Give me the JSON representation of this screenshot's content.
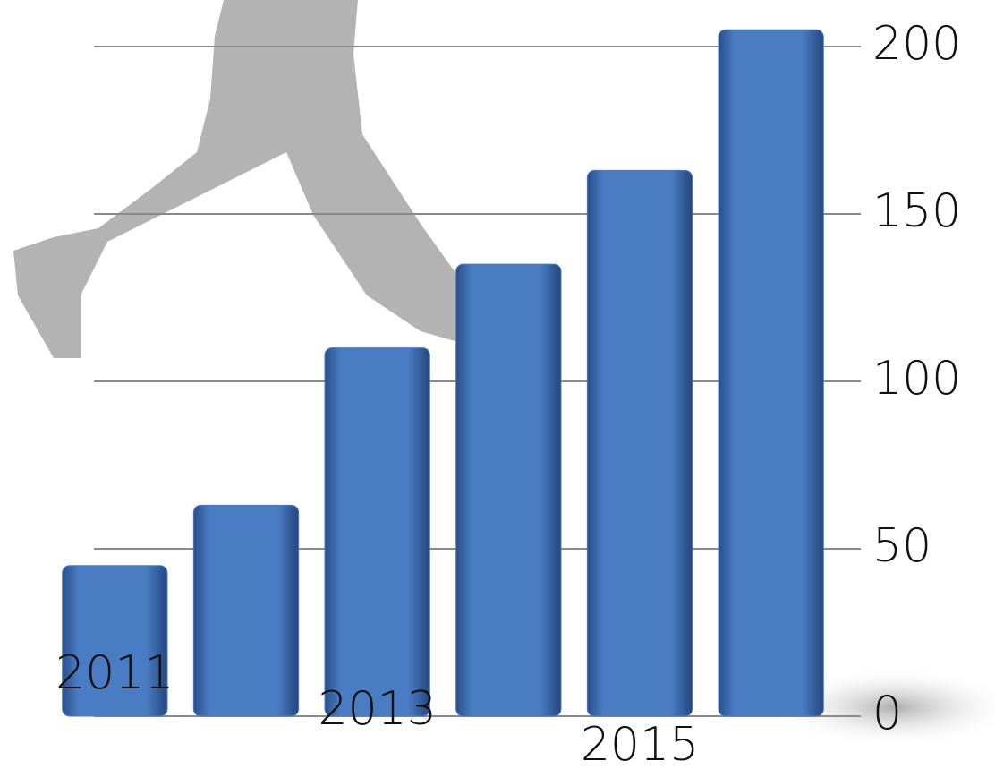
{
  "chart_data": {
    "type": "bar",
    "categories": [
      "2011",
      null,
      "2013",
      null,
      "2015",
      null
    ],
    "values": [
      45,
      63,
      110,
      135,
      163,
      205
    ],
    "color": "#4a7cc4",
    "ylim": [
      0,
      200
    ],
    "yticks": [
      0,
      50,
      100,
      150,
      200
    ],
    "grid": true
  }
}
